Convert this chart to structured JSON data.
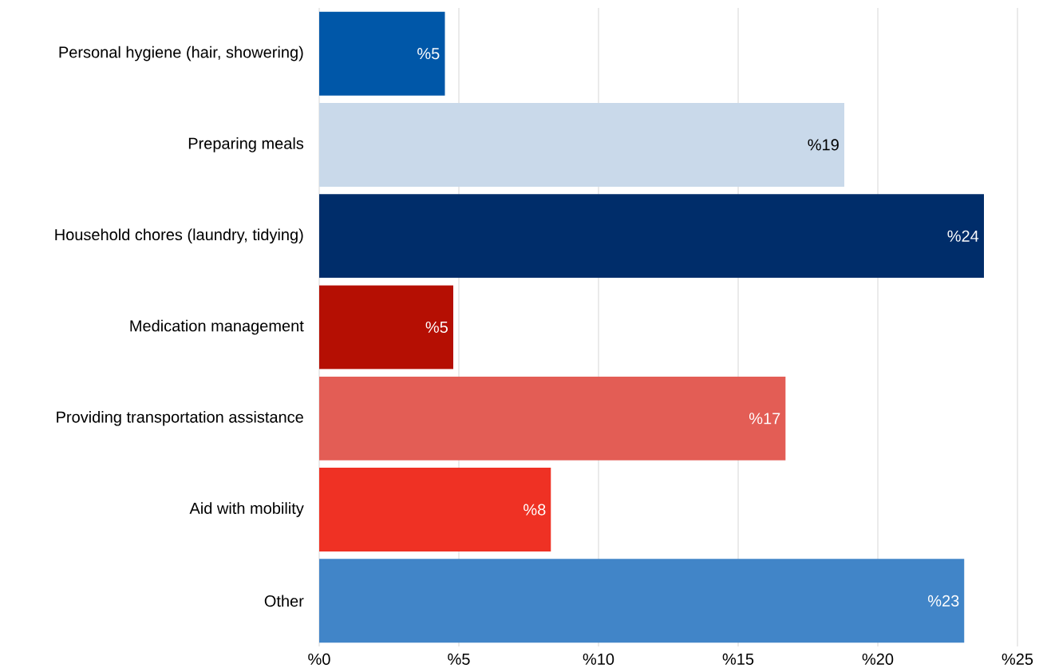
{
  "chart_data": {
    "type": "bar",
    "orientation": "horizontal",
    "categories": [
      "Personal hygiene (hair, showering)",
      "Preparing meals",
      "Household chores (laundry, tidying)",
      "Medication management",
      "Providing transportation assistance",
      "Aid with mobility",
      "Other"
    ],
    "values": [
      4.5,
      18.8,
      23.8,
      4.8,
      16.7,
      8.3,
      23.1
    ],
    "value_labels": [
      "%5",
      "%19",
      "%24",
      "%5",
      "%17",
      "%8",
      "%23"
    ],
    "colors": [
      "#0057a8",
      "#c9d9ea",
      "#002d6a",
      "#b50f03",
      "#e35d55",
      "#ef3124",
      "#4185c8"
    ],
    "xlim": [
      0,
      25
    ],
    "xticks": [
      {
        "value": 0,
        "label": "%0"
      },
      {
        "value": 5,
        "label": "%5"
      },
      {
        "value": 10,
        "label": "%10"
      },
      {
        "value": 15,
        "label": "%15"
      },
      {
        "value": 20,
        "label": "%20"
      },
      {
        "value": 25,
        "label": "%25"
      }
    ],
    "grid": "x"
  }
}
